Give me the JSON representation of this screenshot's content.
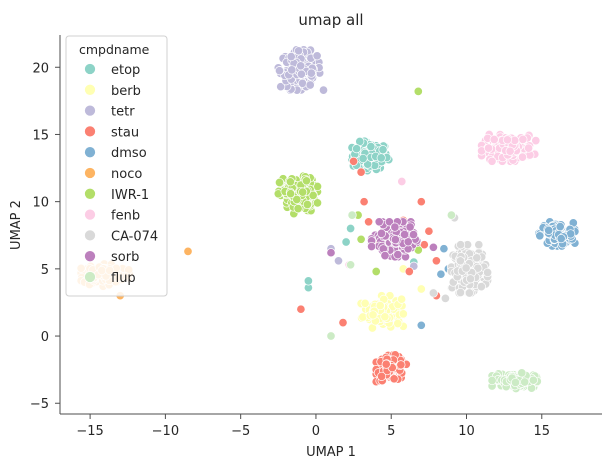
{
  "chart_data": {
    "type": "scatter",
    "title": "umap all",
    "xlabel": "UMAP 1",
    "ylabel": "UMAP 2",
    "xlim": [
      -17.0,
      19.0
    ],
    "ylim": [
      -5.8,
      22.4
    ],
    "xticks": [
      -15,
      -10,
      -5,
      0,
      5,
      10,
      15
    ],
    "yticks": [
      -5,
      0,
      5,
      10,
      15,
      20
    ],
    "grid": false,
    "legend": {
      "title": "cmpdname",
      "placement": "upper-left",
      "entries": [
        "etop",
        "berb",
        "tetr",
        "stau",
        "dmso",
        "noco",
        "IWR-1",
        "fenb",
        "CA-074",
        "sorb",
        "flup"
      ]
    },
    "series": [
      {
        "name": "etop",
        "color": "#8dd3c7",
        "clusters": [
          {
            "cx": 3.6,
            "cy": 13.4,
            "rx": 1.3,
            "ry": 1.1,
            "n": 120
          }
        ],
        "points": [
          [
            -0.5,
            3.6
          ],
          [
            -0.5,
            4.1
          ],
          [
            2.0,
            7.0
          ],
          [
            2.3,
            8.0
          ],
          [
            5.6,
            2.2
          ],
          [
            6.5,
            5.5
          ]
        ]
      },
      {
        "name": "berb",
        "color": "#ffffb3",
        "clusters": [
          {
            "cx": 4.4,
            "cy": 1.8,
            "rx": 1.4,
            "ry": 1.2,
            "n": 120
          }
        ],
        "points": [
          [
            5.8,
            5.0
          ],
          [
            7.0,
            3.5
          ]
        ]
      },
      {
        "name": "tetr",
        "color": "#bebada",
        "clusters": [
          {
            "cx": -1.0,
            "cy": 19.8,
            "rx": 1.5,
            "ry": 1.5,
            "n": 150
          }
        ],
        "points": [
          [
            1.0,
            6.5
          ],
          [
            1.5,
            5.6
          ],
          [
            6.5,
            5.2
          ],
          [
            4.8,
            6.0
          ]
        ]
      },
      {
        "name": "stau",
        "color": "#fb8072",
        "clusters": [
          {
            "cx": 5.0,
            "cy": -2.4,
            "rx": 1.0,
            "ry": 1.0,
            "n": 120
          }
        ],
        "points": [
          [
            -1.0,
            2.0
          ],
          [
            1.8,
            1.0
          ],
          [
            2.5,
            13.0
          ],
          [
            3.0,
            12.2
          ],
          [
            3.2,
            10.0
          ],
          [
            3.5,
            8.5
          ],
          [
            4.8,
            7.5
          ],
          [
            6.0,
            6.5
          ],
          [
            6.2,
            4.8
          ],
          [
            7.0,
            10.0
          ],
          [
            7.2,
            6.8
          ],
          [
            7.5,
            7.8
          ],
          [
            8.0,
            3.0
          ],
          [
            8.0,
            5.6
          ],
          [
            4.2,
            6.9
          ],
          [
            5.8,
            8.6
          ]
        ]
      },
      {
        "name": "dmso",
        "color": "#80b1d3",
        "clusters": [
          {
            "cx": 16.0,
            "cy": 7.6,
            "rx": 1.2,
            "ry": 0.9,
            "n": 120
          }
        ],
        "points": [
          [
            7.0,
            0.8
          ],
          [
            8.5,
            6.5
          ],
          [
            8.3,
            4.6
          ],
          [
            8.8,
            5.0
          ]
        ]
      },
      {
        "name": "noco",
        "color": "#fdb462",
        "clusters": [
          {
            "cx": -14.0,
            "cy": 4.6,
            "rx": 1.6,
            "ry": 0.9,
            "n": 120
          }
        ],
        "points": [
          [
            -8.5,
            6.3
          ],
          [
            -13.0,
            3.0
          ]
        ]
      },
      {
        "name": "IWR-1",
        "color": "#b3de69",
        "clusters": [
          {
            "cx": -1.2,
            "cy": 10.5,
            "rx": 1.3,
            "ry": 1.4,
            "n": 150
          }
        ],
        "points": [
          [
            6.8,
            18.2
          ],
          [
            2.8,
            9.0
          ],
          [
            3.0,
            7.2
          ],
          [
            6.8,
            6.4
          ],
          [
            4.0,
            4.8
          ]
        ]
      },
      {
        "name": "fenb",
        "color": "#fccde5",
        "clusters": [
          {
            "cx": 12.8,
            "cy": 14.0,
            "rx": 1.8,
            "ry": 1.0,
            "n": 160
          }
        ],
        "points": [
          [
            5.7,
            11.5
          ],
          [
            2.2,
            5.3
          ]
        ]
      },
      {
        "name": "CA-074",
        "color": "#d9d9d9",
        "clusters": [
          {
            "cx": 10.2,
            "cy": 5.0,
            "rx": 1.2,
            "ry": 1.8,
            "n": 170
          }
        ],
        "points": [
          [
            9.2,
            8.8
          ],
          [
            8.6,
            2.8
          ],
          [
            7.8,
            3.2
          ]
        ]
      },
      {
        "name": "sorb",
        "color": "#bc80bd",
        "clusters": [
          {
            "cx": 5.2,
            "cy": 7.2,
            "rx": 1.5,
            "ry": 1.3,
            "n": 160
          }
        ],
        "points": [
          [
            1.0,
            6.2
          ],
          [
            7.8,
            6.6
          ]
        ]
      },
      {
        "name": "flup",
        "color": "#ccebc5",
        "clusters": [
          {
            "cx": 13.2,
            "cy": -3.3,
            "rx": 1.5,
            "ry": 0.6,
            "n": 130
          }
        ],
        "points": [
          [
            1.0,
            0.0
          ],
          [
            2.4,
            9.0
          ],
          [
            2.3,
            5.3
          ],
          [
            9.0,
            9.0
          ]
        ]
      }
    ]
  }
}
